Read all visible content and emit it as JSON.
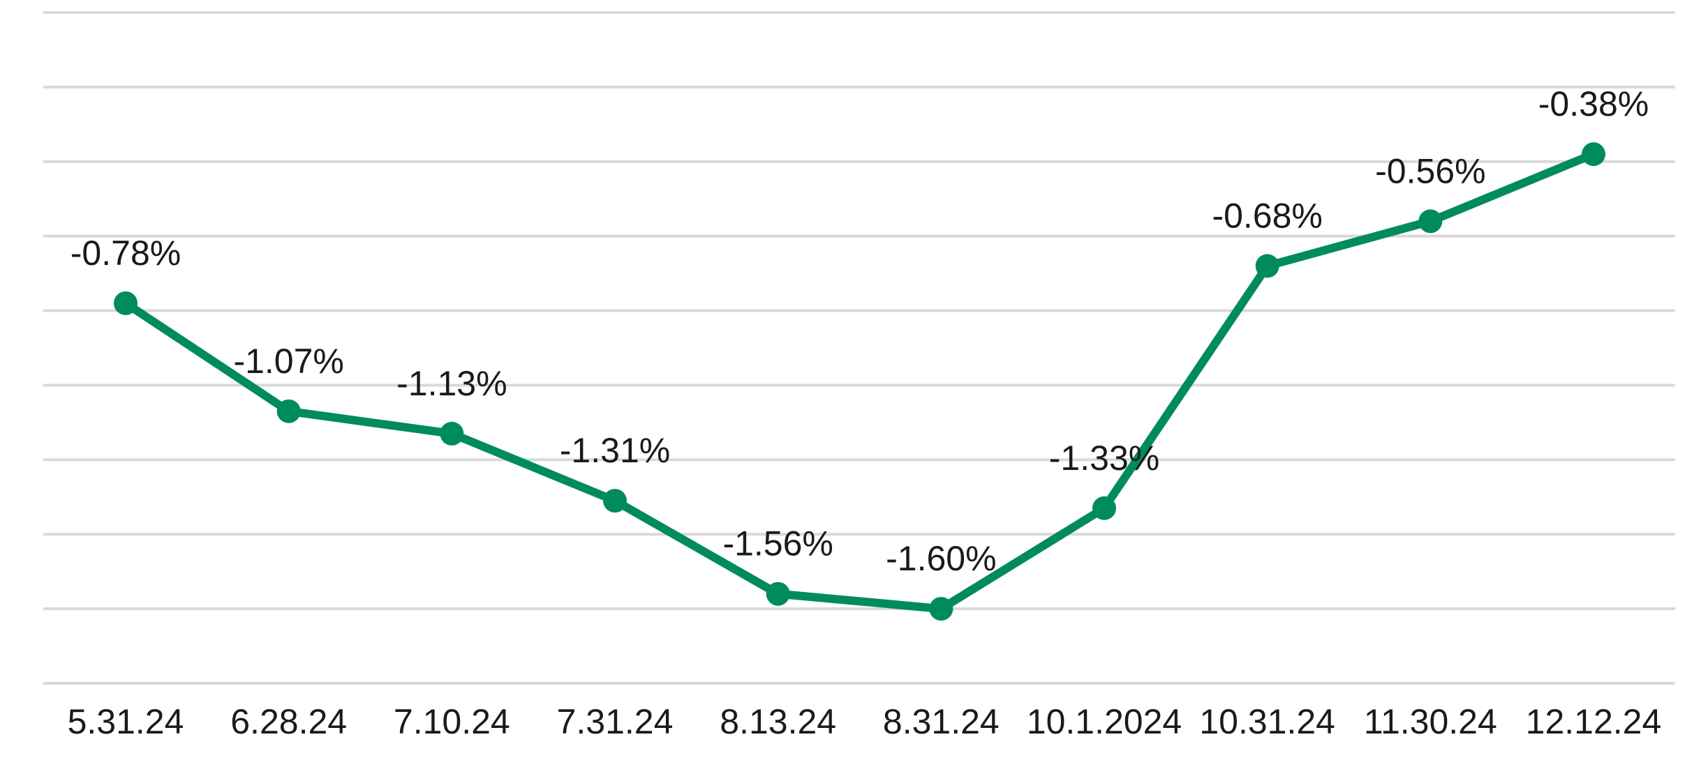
{
  "chart_data": {
    "type": "line",
    "title": "",
    "xlabel": "",
    "ylabel": "",
    "categories": [
      "5.31.24",
      "6.28.24",
      "7.10.24",
      "7.31.24",
      "8.13.24",
      "8.31.24",
      "10.1.2024",
      "10.31.24",
      "11.30.24",
      "12.12.24"
    ],
    "series": [
      {
        "values": [
          -0.78,
          -1.07,
          -1.13,
          -1.31,
          -1.56,
          -1.6,
          -1.33,
          -0.68,
          -0.56,
          -0.38
        ],
        "data_labels": [
          "-0.78%",
          "-1.07%",
          "-1.13%",
          "-1.31%",
          "-1.56%",
          "-1.60%",
          "-1.33%",
          "-0.68%",
          "-0.56%",
          "-0.38%"
        ],
        "color": "#008c5a"
      }
    ],
    "ylim": [
      -1.8,
      0.0
    ],
    "gridline_step": 0.2,
    "grid": true,
    "y_tick_labels_shown": false,
    "legend": "none"
  }
}
